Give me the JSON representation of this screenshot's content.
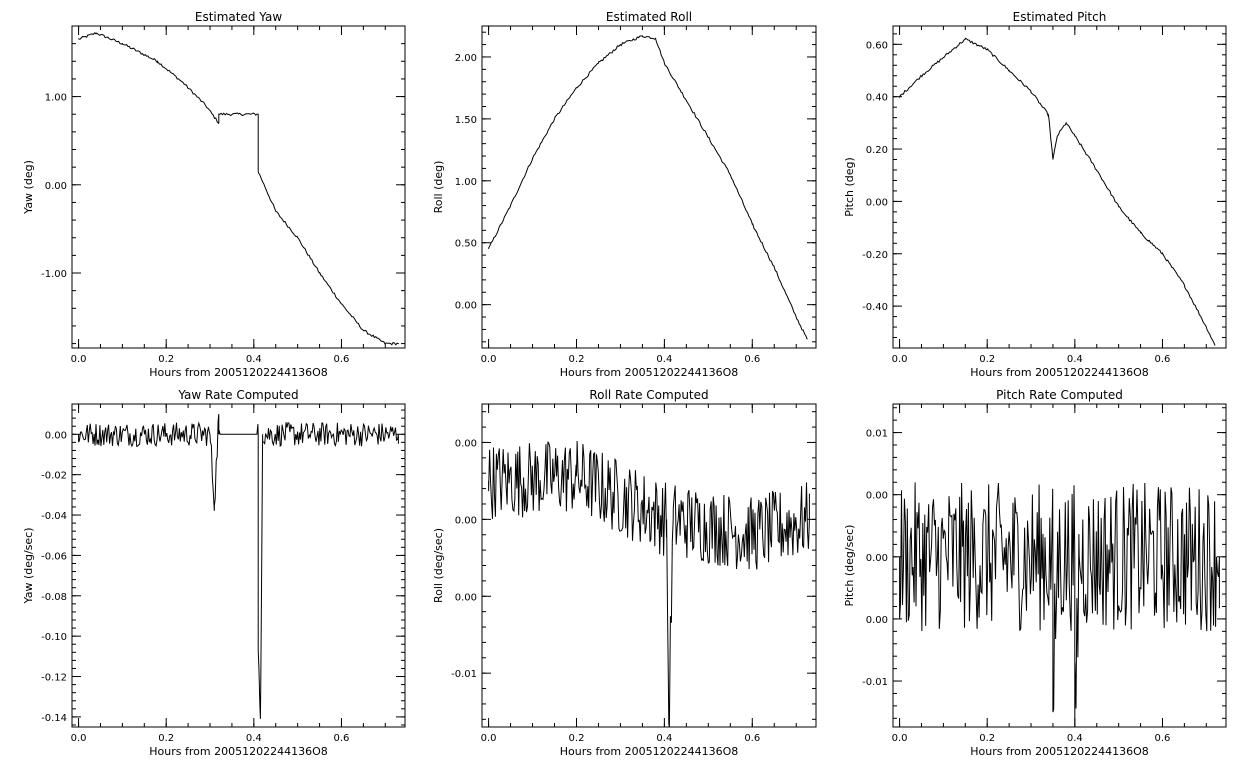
{
  "figure": {
    "panels": [
      {
        "id": "yaw",
        "title": "Estimated Yaw",
        "xlabel": "Hours from 20051202244136O8",
        "ylabel": "Yaw (deg)"
      },
      {
        "id": "roll",
        "title": "Estimated Roll",
        "xlabel": "Hours from 20051202244136O8",
        "ylabel": "Roll (deg)"
      },
      {
        "id": "pitch",
        "title": "Estimated Pitch",
        "xlabel": "Hours from 20051202244136O8",
        "ylabel": "Pitch (deg)"
      },
      {
        "id": "yawrate",
        "title": "Yaw Rate Computed",
        "xlabel": "Hours from 20051202244136O8",
        "ylabel": "Yaw (deg/sec)"
      },
      {
        "id": "rollrate",
        "title": "Roll Rate Computed",
        "xlabel": "Hours from 20051202244136O8",
        "ylabel": "Roll (deg/sec)"
      },
      {
        "id": "pitchrate",
        "title": "Pitch Rate Computed",
        "xlabel": "Hours from 20051202244136O8",
        "ylabel": "Pitch (deg/sec)"
      }
    ]
  },
  "chart_data": [
    {
      "type": "line",
      "title": "Estimated Yaw",
      "xlabel": "Hours from 20051202244136O8",
      "ylabel": "Yaw (deg)",
      "xlim": [
        -0.015,
        0.745
      ],
      "ylim": [
        -1.85,
        1.8
      ],
      "xticks": [
        0.0,
        0.2,
        0.4,
        0.6
      ],
      "xtick_labels": [
        "0.0",
        "0.2",
        "0.4",
        "0.6"
      ],
      "yticks": [
        1.0,
        0.0,
        -1.0
      ],
      "ytick_labels": [
        "1.00",
        "0.00",
        "-1.00"
      ],
      "series": [
        {
          "x": [
            0.0,
            0.04,
            0.1,
            0.18,
            0.24,
            0.29,
            0.32,
            0.32,
            0.41,
            0.41,
            0.45,
            0.5,
            0.55,
            0.6,
            0.65,
            0.7,
            0.73
          ],
          "y": [
            1.65,
            1.72,
            1.6,
            1.4,
            1.15,
            0.9,
            0.7,
            0.8,
            0.8,
            0.15,
            -0.3,
            -0.6,
            -1.0,
            -1.35,
            -1.65,
            -1.8,
            -1.8
          ]
        }
      ]
    },
    {
      "type": "line",
      "title": "Estimated Roll",
      "xlabel": "Hours from 20051202244136O8",
      "ylabel": "Roll (deg)",
      "xlim": [
        -0.015,
        0.745
      ],
      "ylim": [
        -0.35,
        2.25
      ],
      "xticks": [
        0.0,
        0.2,
        0.4,
        0.6
      ],
      "xtick_labels": [
        "0.0",
        "0.2",
        "0.4",
        "0.6"
      ],
      "yticks": [
        2.0,
        1.5,
        1.0,
        0.5,
        0.0
      ],
      "ytick_labels": [
        "2.00",
        "1.50",
        "1.00",
        "0.50",
        "0.00"
      ],
      "series": [
        {
          "x": [
            0.0,
            0.05,
            0.1,
            0.15,
            0.2,
            0.25,
            0.3,
            0.35,
            0.38,
            0.4,
            0.45,
            0.5,
            0.55,
            0.6,
            0.65,
            0.7,
            0.725
          ],
          "y": [
            0.45,
            0.8,
            1.18,
            1.5,
            1.75,
            1.95,
            2.1,
            2.17,
            2.15,
            1.95,
            1.65,
            1.35,
            1.05,
            0.65,
            0.3,
            -0.1,
            -0.28
          ]
        }
      ]
    },
    {
      "type": "line",
      "title": "Estimated Pitch",
      "xlabel": "Hours from 20051202244136O8",
      "ylabel": "Pitch (deg)",
      "xlim": [
        -0.015,
        0.745
      ],
      "ylim": [
        -0.56,
        0.67
      ],
      "xticks": [
        0.0,
        0.2,
        0.4,
        0.6
      ],
      "xtick_labels": [
        "0.0",
        "0.2",
        "0.4",
        "0.6"
      ],
      "yticks": [
        0.6,
        0.4,
        0.2,
        0.0,
        -0.2,
        -0.4
      ],
      "ytick_labels": [
        "0.60",
        "0.40",
        "0.20",
        "0.00",
        "-0.20",
        "-0.40"
      ],
      "series": [
        {
          "x": [
            0.0,
            0.05,
            0.1,
            0.15,
            0.2,
            0.25,
            0.3,
            0.34,
            0.35,
            0.36,
            0.38,
            0.4,
            0.45,
            0.5,
            0.55,
            0.6,
            0.65,
            0.7,
            0.72
          ],
          "y": [
            0.4,
            0.48,
            0.55,
            0.62,
            0.58,
            0.5,
            0.42,
            0.33,
            0.16,
            0.25,
            0.3,
            0.25,
            0.12,
            -0.02,
            -0.12,
            -0.2,
            -0.32,
            -0.48,
            -0.55
          ]
        }
      ]
    },
    {
      "type": "line",
      "title": "Yaw Rate Computed",
      "xlabel": "Hours from 20051202244136O8",
      "ylabel": "Yaw (deg/sec)",
      "xlim": [
        -0.015,
        0.745
      ],
      "ylim": [
        -0.145,
        0.015
      ],
      "xticks": [
        0.0,
        0.2,
        0.4,
        0.6
      ],
      "xtick_labels": [
        "0.0",
        "0.2",
        "0.4",
        "0.6"
      ],
      "yticks": [
        0.0,
        -0.02,
        -0.04,
        -0.06,
        -0.08,
        -0.1,
        -0.12,
        -0.14
      ],
      "ytick_labels": [
        "0.00",
        "-0.02",
        "-0.04",
        "-0.06",
        "-0.08",
        "-0.10",
        "-0.12",
        "-0.14"
      ],
      "series": [
        {
          "x": [
            0.0,
            0.3,
            0.31,
            0.32,
            0.32,
            0.41,
            0.41,
            0.415,
            0.42,
            0.73
          ],
          "y": [
            0.0,
            0.0,
            -0.035,
            0.01,
            0.0,
            0.0,
            -0.107,
            -0.141,
            0.0,
            0.0
          ],
          "noise_amplitude": 0.006
        }
      ]
    },
    {
      "type": "line",
      "title": "Roll Rate Computed",
      "xlabel": "Hours from 20051202244136O8",
      "ylabel": "Roll (deg/sec)",
      "xlim": [
        -0.015,
        0.745
      ],
      "ylim": [
        -0.0135,
        0.0075
      ],
      "xticks": [
        0.0,
        0.2,
        0.4,
        0.6
      ],
      "xtick_labels": [
        "0.0",
        "0.2",
        "0.4",
        "0.6"
      ],
      "yticks": [
        0.005,
        0.0,
        -0.005,
        -0.01
      ],
      "ytick_labels": [
        "0.00",
        "0.00",
        "0.00",
        "-0.01"
      ],
      "series": [
        {
          "x": [
            0.0,
            0.2,
            0.405,
            0.408,
            0.41,
            0.42,
            0.6,
            0.73
          ],
          "y": [
            0.0025,
            0.0028,
            0.0,
            -0.008,
            -0.0133,
            0.0,
            -0.001,
            0.0
          ],
          "noise_amplitude": 0.0025
        }
      ]
    },
    {
      "type": "line",
      "title": "Pitch Rate Computed",
      "xlabel": "Hours from 20051202244136O8",
      "ylabel": "Pitch (deg/sec)",
      "xlim": [
        -0.015,
        0.745
      ],
      "ylim": [
        -0.0137,
        0.0123
      ],
      "xticks": [
        0.0,
        0.2,
        0.4,
        0.6
      ],
      "xtick_labels": [
        "0.0",
        "0.2",
        "0.4",
        "0.6"
      ],
      "yticks": [
        0.01,
        0.005,
        0.0,
        -0.005,
        -0.01
      ],
      "ytick_labels": [
        "0.01",
        "0.00",
        "0.00",
        "0.00",
        "-0.01"
      ],
      "series": [
        {
          "x": [
            0.0,
            0.35,
            0.35,
            0.36,
            0.4,
            0.4,
            0.41,
            0.73
          ],
          "y": [
            0.0,
            0.0,
            -0.0125,
            0.0,
            0.0,
            -0.0135,
            0.0,
            0.0
          ],
          "noise_amplitude": 0.006
        }
      ]
    }
  ]
}
